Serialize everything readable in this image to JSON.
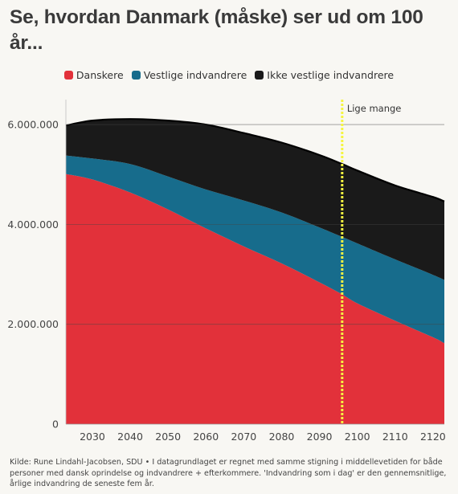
{
  "title": "Se, hvordan Danmark (måske) ser ud om 100 år...",
  "footer": "Kilde: Rune Lindahl-Jacobsen, SDU • I datagrundlaget er regnet med samme stigning i middellevetiden for både personer med dansk oprindelse og indvandrere + efterkommere. 'Indvandring som i dag' er den gennemsnitlige, årlige indvandring de seneste fem år.",
  "colors": {
    "danskere": "#e2313a",
    "vestlige": "#176c8c",
    "ikke_vestlige": "#1a1a1a",
    "marker": "#f5f542",
    "background": "#f8f7f3"
  },
  "chart_data": {
    "type": "area",
    "stacked": true,
    "title": "Se, hvordan Danmark (måske) ser ud om 100 år...",
    "xlabel": "",
    "ylabel": "",
    "xlim": [
      2023,
      2123
    ],
    "ylim": [
      0,
      6500000
    ],
    "x_ticks": [
      2030,
      2040,
      2050,
      2060,
      2070,
      2080,
      2090,
      2100,
      2110,
      2120
    ],
    "x_tick_labels": [
      "2030",
      "2040",
      "2050",
      "2060",
      "2070",
      "2080",
      "2090",
      "2100",
      "2110",
      "2120"
    ],
    "y_ticks": [
      0,
      2000000,
      4000000,
      6000000
    ],
    "y_tick_labels": [
      "0",
      "2.000.000",
      "4.000.000",
      "6.000.000"
    ],
    "grid": "horizontal",
    "legend_position": "top-center",
    "x": [
      2023,
      2030,
      2040,
      2050,
      2060,
      2070,
      2080,
      2090,
      2096,
      2100,
      2110,
      2120,
      2123
    ],
    "series": [
      {
        "name": "Danskere",
        "color": "#e2313a",
        "values": [
          5010000,
          4900000,
          4640000,
          4300000,
          3920000,
          3560000,
          3220000,
          2840000,
          2600000,
          2420000,
          2070000,
          1740000,
          1620000
        ]
      },
      {
        "name": "Vestlige indvandrere",
        "color": "#176c8c",
        "values": [
          370000,
          420000,
          570000,
          660000,
          780000,
          920000,
          1020000,
          1100000,
          1150000,
          1200000,
          1230000,
          1250000,
          1270000
        ]
      },
      {
        "name": "Ikke vestlige indvandrere",
        "color": "#1a1a1a",
        "values": [
          600000,
          760000,
          900000,
          1120000,
          1300000,
          1350000,
          1400000,
          1450000,
          1460000,
          1460000,
          1480000,
          1560000,
          1570000
        ]
      }
    ],
    "annotations": [
      {
        "text": "Lige mange",
        "x": 2096
      }
    ]
  }
}
